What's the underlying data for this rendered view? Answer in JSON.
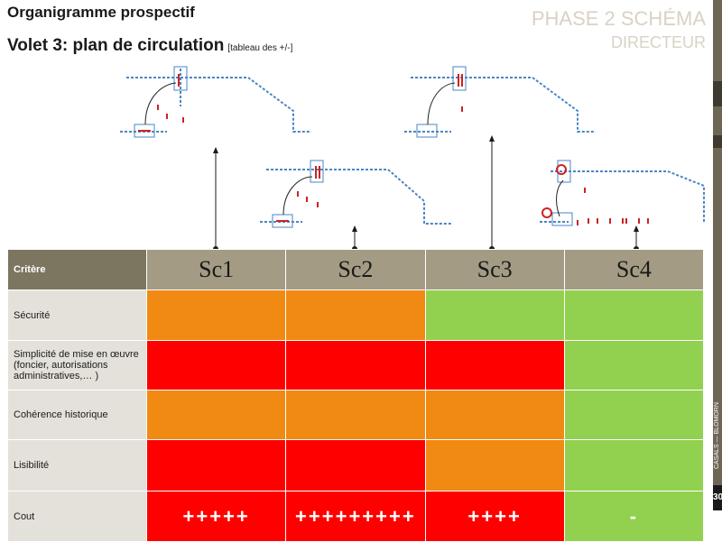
{
  "header": {
    "title": "Organigramme prospectif",
    "subtitle": "Volet 3: plan de circulation",
    "subtitle_note": "[tableau des +/-]"
  },
  "phase": {
    "line1": "PHASE 2 SCHÉMA",
    "line2": "DIRECTEUR"
  },
  "side": {
    "label": "CASALS — BLOMORN",
    "page": "30"
  },
  "colors": {
    "orange": "#f08a12",
    "red": "#ff0000",
    "green": "#92d050",
    "header_dark": "#7c755f",
    "header_light": "#a39b84"
  },
  "table": {
    "criteria_header": "Critère",
    "scenarios": [
      "Sc1",
      "Sc2",
      "Sc3",
      "Sc4"
    ],
    "rows": [
      {
        "label": "Sécurité",
        "cells": [
          {
            "color": "orange",
            "text": ""
          },
          {
            "color": "orange",
            "text": ""
          },
          {
            "color": "green",
            "text": ""
          },
          {
            "color": "green",
            "text": ""
          }
        ]
      },
      {
        "label": "Simplicité de mise en œuvre (foncier, autorisations administratives,… )",
        "cells": [
          {
            "color": "red",
            "text": ""
          },
          {
            "color": "red",
            "text": ""
          },
          {
            "color": "red",
            "text": ""
          },
          {
            "color": "green",
            "text": ""
          }
        ]
      },
      {
        "label": "Cohérence historique",
        "cells": [
          {
            "color": "orange",
            "text": ""
          },
          {
            "color": "orange",
            "text": ""
          },
          {
            "color": "orange",
            "text": ""
          },
          {
            "color": "green",
            "text": ""
          }
        ]
      },
      {
        "label": "Lisibilité",
        "cells": [
          {
            "color": "red",
            "text": ""
          },
          {
            "color": "red",
            "text": ""
          },
          {
            "color": "orange",
            "text": ""
          },
          {
            "color": "green",
            "text": ""
          }
        ]
      },
      {
        "label": "Cout",
        "cells": [
          {
            "color": "red",
            "text": "+++++"
          },
          {
            "color": "red",
            "text": "+++++++++"
          },
          {
            "color": "red",
            "text": "++++"
          },
          {
            "color": "green",
            "text": "-"
          }
        ]
      }
    ]
  }
}
